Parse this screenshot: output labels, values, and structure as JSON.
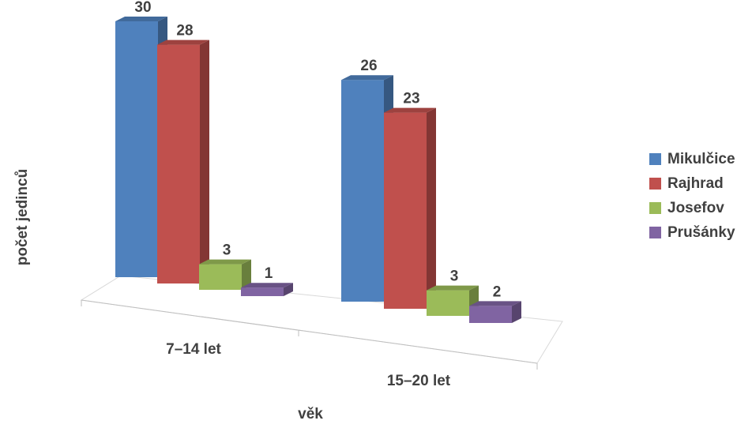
{
  "chart_data": {
    "type": "bar",
    "title": "",
    "xlabel": "věk",
    "ylabel": "počet jedinců",
    "categories": [
      "7–14 let",
      "15–20 let"
    ],
    "series": [
      {
        "name": "Mikulčice",
        "values": [
          30,
          26
        ],
        "color": "#4F81BD"
      },
      {
        "name": "Rajhrad",
        "values": [
          28,
          23
        ],
        "color": "#C0504D"
      },
      {
        "name": "Josefov",
        "values": [
          3,
          3
        ],
        "color": "#9BBB59"
      },
      {
        "name": "Prušánky",
        "values": [
          1,
          2
        ],
        "color": "#8064A2"
      }
    ],
    "legend_position": "right",
    "grid": false,
    "style": "3d-clustered-column"
  }
}
